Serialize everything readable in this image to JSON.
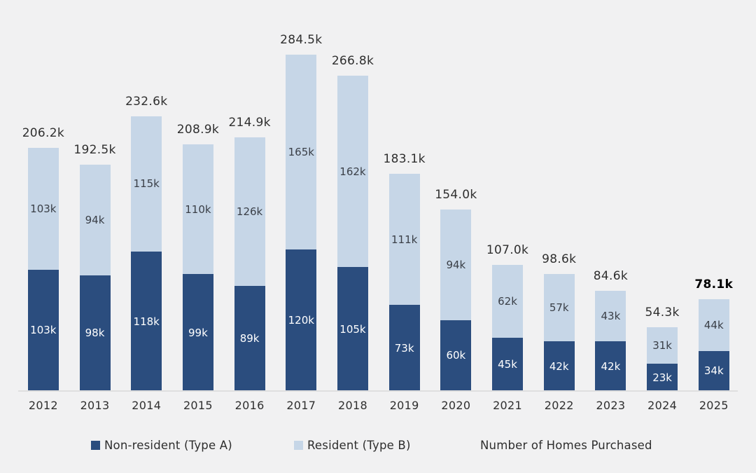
{
  "title": "Number of Homes Purchased",
  "legend": {
    "non_resident_label": "Non-resident (Type A)",
    "resident_label": "Resident (Type B)"
  },
  "colors": {
    "non_resident": "#2b4d7e",
    "resident": "#c6d6e7",
    "background": "#f1f1f2",
    "baseline": "#dfdfdf",
    "axis_text": "#2f2f2f",
    "text_on_dark_segment": "#ffffff",
    "text_on_light_segment": "#3a3f47",
    "total_label_text": "#2f2f2f",
    "bold_total_text": "#000000"
  },
  "chart_data": {
    "type": "bar",
    "stacked": true,
    "title": "Number of Homes Purchased",
    "xlabel": "",
    "ylabel": "",
    "grid": false,
    "legend_position": "bottom",
    "ylim": [
      0,
      300
    ],
    "unit": "thousands of homes",
    "categories": [
      "2012",
      "2013",
      "2014",
      "2015",
      "2016",
      "2017",
      "2018",
      "2019",
      "2020",
      "2021",
      "2022",
      "2023",
      "2024",
      "2025"
    ],
    "series": [
      {
        "name": "Non-resident (Type A)",
        "color": "#2b4d7e",
        "values": [
          103,
          98,
          118,
          99,
          89,
          120,
          105,
          73,
          60,
          45,
          42,
          42,
          23,
          34
        ],
        "labels": [
          "103k",
          "98k",
          "118k",
          "99k",
          "89k",
          "120k",
          "105k",
          "73k",
          "60k",
          "45k",
          "42k",
          "42k",
          "23k",
          "34k"
        ]
      },
      {
        "name": "Resident (Type B)",
        "color": "#c6d6e7",
        "values": [
          103,
          94,
          115,
          110,
          126,
          165,
          162,
          111,
          94,
          62,
          57,
          43,
          31,
          44
        ],
        "labels": [
          "103k",
          "94k",
          "115k",
          "110k",
          "126k",
          "165k",
          "162k",
          "111k",
          "94k",
          "62k",
          "57k",
          "43k",
          "31k",
          "44k"
        ]
      }
    ],
    "totals": {
      "values": [
        206.2,
        192.5,
        232.6,
        208.9,
        214.9,
        284.5,
        266.8,
        183.1,
        154.0,
        107.0,
        98.6,
        84.6,
        54.3,
        78.1
      ],
      "labels": [
        "206.2k",
        "192.5k",
        "232.6k",
        "208.9k",
        "214.9k",
        "284.5k",
        "266.8k",
        "183.1k",
        "154.0k",
        "107.0k",
        "98.6k",
        "84.6k",
        "54.3k",
        "78.1k"
      ],
      "bold_index": 13
    }
  }
}
